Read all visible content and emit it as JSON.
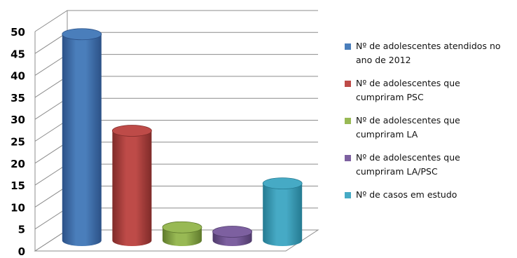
{
  "chart_data": {
    "type": "bar",
    "style": "3d-cylinder",
    "ylim": [
      0,
      50
    ],
    "yticks": [
      0,
      5,
      10,
      15,
      20,
      25,
      30,
      35,
      40,
      45,
      50
    ],
    "grid": true,
    "legend_position": "right",
    "categories": [
      "Nº de adolescentes atendidos no ano de 2012",
      "Nº de adolescentes que cumpriram PSC",
      "Nº de adolescentes que cumpriram LA",
      "Nº de adolescentes que cumpriram LA/PSC",
      "Nº  de casos em estudo"
    ],
    "values": [
      47,
      25,
      3,
      2,
      13
    ],
    "colors": [
      "#4a7ebb",
      "#be4b48",
      "#98b954",
      "#7d60a0",
      "#46aac5"
    ],
    "dark_colors": [
      "#2c5187",
      "#7f2b29",
      "#5f7a2c",
      "#4f3a6b",
      "#257a91"
    ],
    "legend": [
      {
        "line1": "Nº de adolescentes atendidos no",
        "line2": "ano de 2012"
      },
      {
        "line1": "Nº de adolescentes que",
        "line2": "cumpriram PSC"
      },
      {
        "line1": "Nº de adolescentes que",
        "line2": "cumpriram LA"
      },
      {
        "line1": "Nº de adolescentes que",
        "line2": "cumpriram LA/PSC"
      },
      {
        "line1": "Nº  de casos em estudo",
        "line2": ""
      }
    ]
  }
}
